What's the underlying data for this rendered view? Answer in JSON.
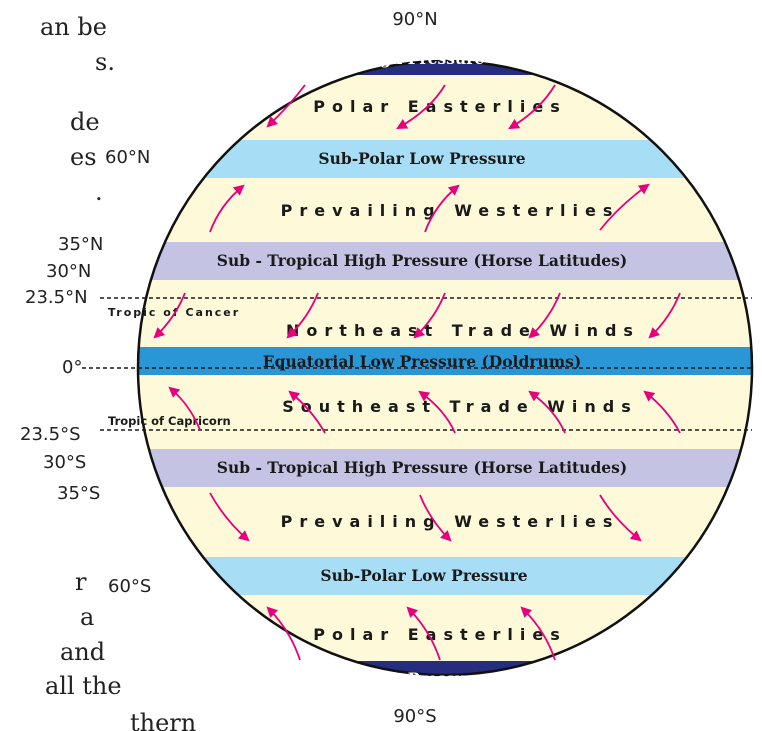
{
  "page_text": {
    "line1": "an be",
    "line2": "s.",
    "line3": "de",
    "line4": "es",
    "line5": ".",
    "line6": "r",
    "line7": "a",
    "line8": "and",
    "line9": "all the",
    "line10": "thern"
  },
  "latitudes": {
    "n90": "90°N",
    "n60": "60°N",
    "n35": "35°N",
    "n30": "30°N",
    "n23": "23.5°N",
    "eq": "0°",
    "s23": "23.5°S",
    "s30": "30°S",
    "s35": "35°S",
    "s60": "60°S",
    "s90": "90°S"
  },
  "bands": {
    "high_n": "High Pressure",
    "subpolar_n": "Sub-Polar Low Pressure",
    "subtropical_n": "Sub - Tropical High Pressure  (Horse Latitudes)",
    "equatorial": "Equatorial Low   Pressure (Doldrums)",
    "subtropical_s": "Sub - Tropical High  Pressure (Horse Latitudes)",
    "subpolar_s": "Sub-Polar Low Pressure",
    "high_s": "High Pressure"
  },
  "winds": {
    "polar_n": "Polar  Easterlies",
    "westerlies_n": "Prevailing Westerlies",
    "ne_trade": "Northeast Trade Winds",
    "se_trade": "Southeast Trade Winds",
    "westerlies_s": "Prevailing Westerlies",
    "polar_s": "Polar  Easterlies"
  },
  "tropics": {
    "cancer": "Tropic of Cancer",
    "capricorn": "Tropic of Capricorn"
  },
  "colors": {
    "high": "#262d7e",
    "cream": "#fdf9d9",
    "subpolar": "#a8def5",
    "subtropical": "#c5c3e3",
    "equatorial": "#2a96d6",
    "arrow": "#e6007e"
  }
}
